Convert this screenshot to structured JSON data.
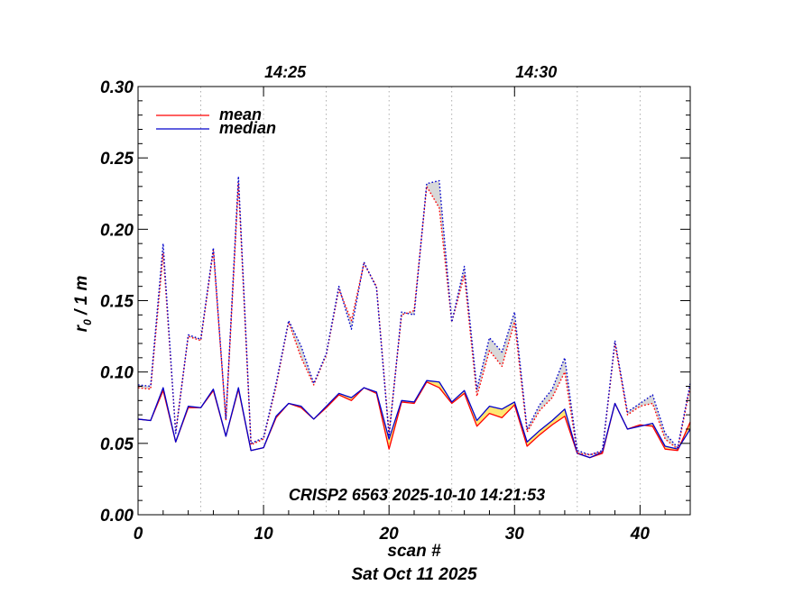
{
  "chart_data": {
    "type": "line",
    "title": "",
    "xlabel": "scan #",
    "xlabel2": "Sat Oct 11 2025",
    "ylabel": "r₀ / 1 m",
    "xlim": [
      0,
      44
    ],
    "ylim": [
      0.0,
      0.3
    ],
    "xticks": [
      0,
      10,
      20,
      30,
      40
    ],
    "xtick_labels": [
      "0",
      "10",
      "20",
      "30",
      "40"
    ],
    "yticks": [
      0.0,
      0.05,
      0.1,
      0.15,
      0.2,
      0.25,
      0.3
    ],
    "ytick_labels": [
      "0.00",
      "0.05",
      "0.10",
      "0.15",
      "0.20",
      "0.25",
      "0.30"
    ],
    "top_axis_ticks": [
      {
        "label": "14:25",
        "x": 10
      },
      {
        "label": "14:30",
        "x": 30
      }
    ],
    "time_gridlines_x": [
      0,
      5,
      10,
      15,
      20,
      25,
      30,
      35,
      40
    ],
    "annotation": "CRISP2 6563 2025-10-10 14:21:53",
    "legend": {
      "placement": "top-left",
      "entries": [
        {
          "label": "mean",
          "color": "#ff0000"
        },
        {
          "label": "median",
          "color": "#0000cc"
        }
      ]
    },
    "x": [
      0,
      1,
      2,
      3,
      4,
      5,
      6,
      7,
      8,
      9,
      10,
      11,
      12,
      13,
      14,
      15,
      16,
      17,
      18,
      19,
      20,
      21,
      22,
      23,
      24,
      25,
      26,
      27,
      28,
      29,
      30,
      31,
      32,
      33,
      34,
      35,
      36,
      37,
      38,
      39,
      40,
      41,
      42,
      43,
      44
    ],
    "series": [
      {
        "name": "mean (solid)",
        "color": "#ff0000",
        "style": "solid",
        "values": [
          0.067,
          0.066,
          0.087,
          0.051,
          0.075,
          0.075,
          0.087,
          0.055,
          0.088,
          0.045,
          0.047,
          0.068,
          0.078,
          0.075,
          0.067,
          0.075,
          0.084,
          0.08,
          0.089,
          0.085,
          0.046,
          0.079,
          0.078,
          0.093,
          0.089,
          0.078,
          0.085,
          0.062,
          0.071,
          0.068,
          0.077,
          0.048,
          0.056,
          0.063,
          0.069,
          0.043,
          0.04,
          0.043,
          0.078,
          0.06,
          0.063,
          0.062,
          0.046,
          0.045,
          0.065
        ]
      },
      {
        "name": "median (solid)",
        "color": "#0000cc",
        "style": "solid",
        "values": [
          0.067,
          0.066,
          0.089,
          0.051,
          0.076,
          0.075,
          0.088,
          0.055,
          0.089,
          0.045,
          0.047,
          0.069,
          0.078,
          0.076,
          0.067,
          0.076,
          0.085,
          0.082,
          0.089,
          0.086,
          0.053,
          0.08,
          0.079,
          0.094,
          0.093,
          0.079,
          0.087,
          0.066,
          0.076,
          0.074,
          0.079,
          0.051,
          0.059,
          0.066,
          0.074,
          0.043,
          0.04,
          0.044,
          0.078,
          0.06,
          0.062,
          0.064,
          0.048,
          0.046,
          0.06
        ]
      },
      {
        "name": "mean (dotted)",
        "color": "#ff0000",
        "style": "dotted",
        "values": [
          0.089,
          0.088,
          0.183,
          0.058,
          0.125,
          0.122,
          0.185,
          0.066,
          0.232,
          0.049,
          0.053,
          0.09,
          0.135,
          0.11,
          0.091,
          0.112,
          0.158,
          0.136,
          0.176,
          0.16,
          0.057,
          0.14,
          0.143,
          0.23,
          0.215,
          0.135,
          0.168,
          0.083,
          0.115,
          0.104,
          0.135,
          0.058,
          0.073,
          0.082,
          0.1,
          0.043,
          0.042,
          0.044,
          0.12,
          0.07,
          0.076,
          0.078,
          0.053,
          0.046,
          0.09
        ]
      },
      {
        "name": "median (dotted)",
        "color": "#0000cc",
        "style": "dotted",
        "values": [
          0.091,
          0.09,
          0.19,
          0.057,
          0.126,
          0.123,
          0.187,
          0.067,
          0.237,
          0.05,
          0.054,
          0.092,
          0.136,
          0.118,
          0.092,
          0.113,
          0.16,
          0.13,
          0.177,
          0.159,
          0.055,
          0.142,
          0.14,
          0.232,
          0.234,
          0.135,
          0.174,
          0.088,
          0.124,
          0.114,
          0.142,
          0.06,
          0.077,
          0.088,
          0.11,
          0.045,
          0.042,
          0.045,
          0.122,
          0.072,
          0.078,
          0.084,
          0.057,
          0.047,
          0.092
        ]
      }
    ],
    "bands": [
      {
        "color": "#ffd400",
        "lower": "mean (solid)",
        "upper": "median (solid)"
      },
      {
        "color": "#c8c8c8",
        "lower": "mean (dotted)",
        "upper": "median (dotted)"
      }
    ]
  }
}
